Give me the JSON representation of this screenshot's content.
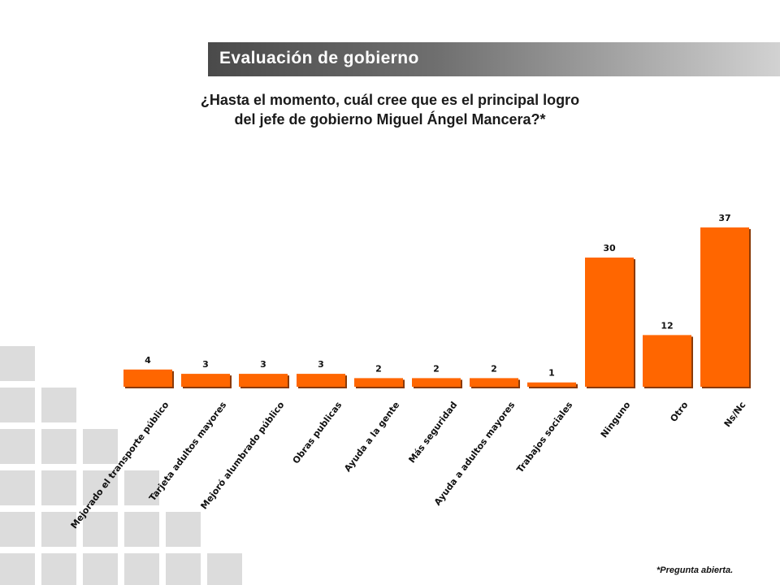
{
  "header": {
    "title": "Evaluación de gobierno"
  },
  "question": {
    "line1": "¿Hasta el momento, cuál cree que es el principal logro",
    "line2": "del jefe de gobierno Miguel Ángel Mancera?*"
  },
  "footnote": "*Pregunta abierta.",
  "colors": {
    "bar": "#ff6600",
    "bar_shadow": "#8a3a08",
    "header_start": "#4a4a4a",
    "deco_squares": "#dcdcdc"
  },
  "chart_data": {
    "type": "bar",
    "title": "",
    "xlabel": "",
    "ylabel": "",
    "ylim": [
      0,
      40
    ],
    "grid": false,
    "categories": [
      "Mejorado el transporte público",
      "Tarjeta adultos mayores",
      "Mejoró alumbrado público",
      "Obras publicas",
      "Ayuda a la gente",
      "Más seguridad",
      "Ayuda a adultos mayores",
      "Trabajos sociales",
      "Ninguno",
      "Otro",
      "Ns/Nc"
    ],
    "values": [
      4,
      3,
      3,
      3,
      2,
      2,
      2,
      1,
      30,
      12,
      37
    ]
  }
}
